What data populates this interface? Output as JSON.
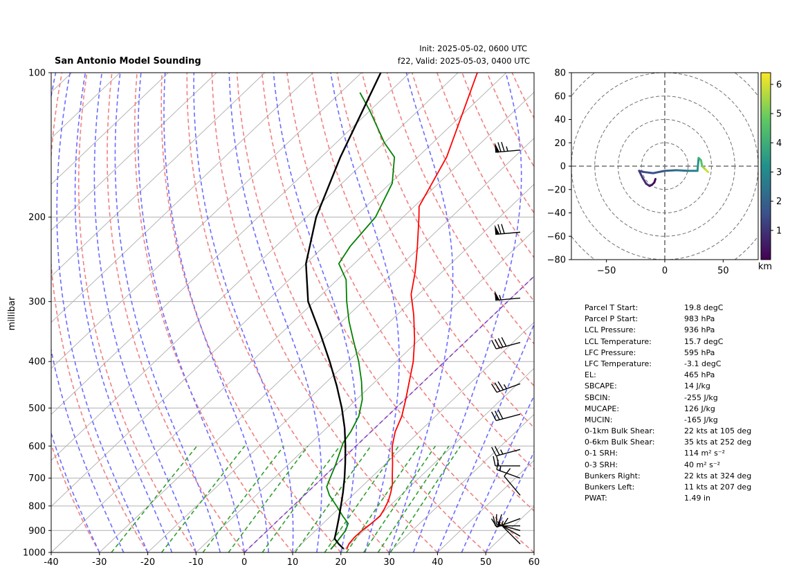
{
  "header": {
    "title": "San Antonio Model Sounding",
    "init": "Init: 2025-05-02, 0600 UTC",
    "valid": "f22, Valid: 2025-05-03, 0400 UTC"
  },
  "chart_data": [
    {
      "type": "line",
      "subtype": "skew-t log-p",
      "ylabel": "millibar",
      "xlim": [
        -40,
        60
      ],
      "ylim": [
        1000,
        100
      ],
      "yscale": "log",
      "yticks": [
        100,
        200,
        300,
        400,
        500,
        600,
        700,
        800,
        900,
        1000
      ],
      "xticks": [
        -40,
        -30,
        -20,
        -10,
        0,
        10,
        20,
        30,
        40,
        50,
        60
      ],
      "grid": "horizontal isobars",
      "colors": {
        "temperature": "#ff0000",
        "dewpoint": "#008000",
        "parcel": "#000000",
        "dry_adiabats": "#f08080",
        "moist_adiabats": "#6b6bff",
        "mixing_ratio": "#2e9e2e",
        "isotherms": "#b4b4b4",
        "zero_isotherm": "#8a3fc8"
      },
      "series": [
        {
          "key": "temperature",
          "points": [
            [
              985,
              20.5
            ],
            [
              960,
              19.8
            ],
            [
              930,
              19.5
            ],
            [
              900,
              19.6
            ],
            [
              870,
              20.0
            ],
            [
              840,
              20.2
            ],
            [
              810,
              19.5
            ],
            [
              780,
              18.6
            ],
            [
              750,
              17.3
            ],
            [
              720,
              15.8
            ],
            [
              700,
              14.5
            ],
            [
              680,
              13.2
            ],
            [
              650,
              11.2
            ],
            [
              620,
              9.0
            ],
            [
              600,
              7.5
            ],
            [
              560,
              5.0
            ],
            [
              520,
              3.0
            ],
            [
              480,
              0.2
            ],
            [
              440,
              -3.0
            ],
            [
              400,
              -6.5
            ],
            [
              360,
              -11.0
            ],
            [
              320,
              -16.5
            ],
            [
              290,
              -21.5
            ],
            [
              260,
              -25.6
            ],
            [
              230,
              -30.7
            ],
            [
              200,
              -36.7
            ],
            [
              190,
              -39.0
            ],
            [
              150,
              -44.0
            ],
            [
              100,
              -56.0
            ]
          ]
        },
        {
          "key": "dewpoint",
          "points": [
            [
              985,
              17.2
            ],
            [
              960,
              17.0
            ],
            [
              930,
              16.6
            ],
            [
              900,
              16.2
            ],
            [
              870,
              15.2
            ],
            [
              840,
              12.5
            ],
            [
              800,
              9.0
            ],
            [
              760,
              5.2
            ],
            [
              730,
              2.8
            ],
            [
              700,
              1.6
            ],
            [
              660,
              0.0
            ],
            [
              620,
              -1.9
            ],
            [
              590,
              -3.4
            ],
            [
              560,
              -4.2
            ],
            [
              520,
              -5.9
            ],
            [
              480,
              -8.8
            ],
            [
              440,
              -12.9
            ],
            [
              400,
              -17.8
            ],
            [
              360,
              -23.7
            ],
            [
              330,
              -28.5
            ],
            [
              300,
              -33.3
            ],
            [
              270,
              -38.2
            ],
            [
              250,
              -43.2
            ],
            [
              230,
              -44.6
            ],
            [
              200,
              -45.7
            ],
            [
              170,
              -49.6
            ],
            [
              150,
              -54.8
            ],
            [
              140,
              -60.0
            ],
            [
              120,
              -70.0
            ],
            [
              110,
              -76.0
            ]
          ]
        },
        {
          "key": "parcel",
          "points": [
            [
              983,
              19.8
            ],
            [
              960,
              17.7
            ],
            [
              936,
              15.7
            ],
            [
              900,
              14.3
            ],
            [
              850,
              12.2
            ],
            [
              800,
              9.9
            ],
            [
              750,
              7.4
            ],
            [
              700,
              4.6
            ],
            [
              650,
              1.4
            ],
            [
              600,
              -2.2
            ],
            [
              550,
              -6.3
            ],
            [
              500,
              -11.2
            ],
            [
              465,
              -15.2
            ],
            [
              450,
              -17.0
            ],
            [
              400,
              -23.8
            ],
            [
              350,
              -31.8
            ],
            [
              300,
              -41.3
            ],
            [
              250,
              -50.0
            ],
            [
              200,
              -58.0
            ],
            [
              150,
              -66.0
            ],
            [
              100,
              -76.0
            ]
          ]
        }
      ],
      "wind_barbs_kt": [
        {
          "p": 145,
          "speed": 75,
          "direction": 265
        },
        {
          "p": 215,
          "speed": 70,
          "direction": 265
        },
        {
          "p": 295,
          "speed": 55,
          "direction": 265
        },
        {
          "p": 365,
          "speed": 40,
          "direction": 255
        },
        {
          "p": 445,
          "speed": 35,
          "direction": 250
        },
        {
          "p": 515,
          "speed": 30,
          "direction": 255
        },
        {
          "p": 610,
          "speed": 25,
          "direction": 255
        },
        {
          "p": 660,
          "speed": 20,
          "direction": 270
        },
        {
          "p": 700,
          "speed": 15,
          "direction": 290
        },
        {
          "p": 760,
          "speed": 10,
          "direction": 320
        },
        {
          "p": 850,
          "speed": 15,
          "direction": 250
        },
        {
          "p": 880,
          "speed": 15,
          "direction": 270
        },
        {
          "p": 900,
          "speed": 15,
          "direction": 285
        },
        {
          "p": 925,
          "speed": 15,
          "direction": 300
        },
        {
          "p": 960,
          "speed": 10,
          "direction": 315
        }
      ]
    },
    {
      "type": "line",
      "subtype": "hodograph",
      "xlim": [
        -80,
        80
      ],
      "ylim": [
        -80,
        80
      ],
      "xticks": [
        -50,
        0,
        50
      ],
      "yticks": [
        -80,
        -60,
        -40,
        -20,
        0,
        20,
        40,
        60,
        80
      ],
      "colorbar": {
        "label": "km",
        "ticks": [
          1,
          2,
          3,
          4,
          5,
          6
        ],
        "range": [
          0,
          6.4
        ]
      },
      "points": [
        [
          -8,
          -11
        ],
        [
          -9,
          -14
        ],
        [
          -11,
          -16
        ],
        [
          -13,
          -17
        ],
        [
          -16,
          -15
        ],
        [
          -19,
          -10
        ],
        [
          -22,
          -4
        ],
        [
          -18,
          -5
        ],
        [
          -10,
          -6
        ],
        [
          0,
          -4
        ],
        [
          10,
          -3.5
        ],
        [
          20,
          -4
        ],
        [
          28,
          -4
        ],
        [
          29,
          7
        ],
        [
          31,
          5
        ],
        [
          32,
          0
        ],
        [
          33,
          -1
        ],
        [
          35,
          -3
        ],
        [
          37,
          -5
        ]
      ],
      "heights_km": [
        0.0,
        0.2,
        0.4,
        0.6,
        0.8,
        1.0,
        1.2,
        1.4,
        1.6,
        1.8,
        2.2,
        2.6,
        2.8,
        3.8,
        4.3,
        4.8,
        5.2,
        5.7,
        6.2
      ]
    }
  ],
  "parameters": [
    {
      "label": "Parcel T Start:",
      "value": "19.8 degC"
    },
    {
      "label": "Parcel P Start:",
      "value": "983 hPa"
    },
    {
      "label": "LCL Pressure:",
      "value": "936 hPa"
    },
    {
      "label": "LCL Temperature:",
      "value": "15.7 degC"
    },
    {
      "label": "LFC Pressure:",
      "value": "595 hPa"
    },
    {
      "label": "LFC Temperature:",
      "value": "-3.1 degC"
    },
    {
      "label": "EL:",
      "value": "465 hPa"
    },
    {
      "label": "SBCAPE:",
      "value": "14 J/kg"
    },
    {
      "label": "SBCIN:",
      "value": "-255 J/kg"
    },
    {
      "label": "MUCAPE:",
      "value": "126 J/kg"
    },
    {
      "label": "MUCIN:",
      "value": "-165 J/kg"
    },
    {
      "label": "0-1km Bulk Shear:",
      "value": "22 kts at 105 deg"
    },
    {
      "label": "0-6km Bulk Shear:",
      "value": "35 kts at 252 deg"
    },
    {
      "label": "0-1 SRH:",
      "value": "114 m² s⁻²"
    },
    {
      "label": "0-3 SRH:",
      "value": "40 m² s⁻²"
    },
    {
      "label": "Bunkers Right:",
      "value": "22 kts at 324 deg"
    },
    {
      "label": "Bunkers Left:",
      "value": "11 kts at 207 deg"
    },
    {
      "label": "PWAT:",
      "value": "1.49 in"
    }
  ]
}
